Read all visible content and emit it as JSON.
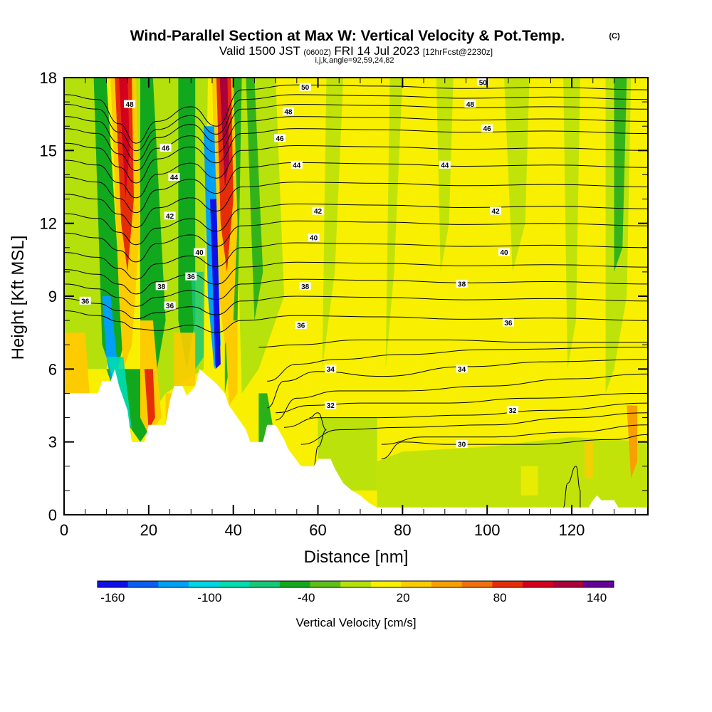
{
  "chart_data": {
    "type": "heatmap",
    "title": "Wind-Parallel Section at Max W: Vertical Velocity & Pot.Temp.",
    "title_mark": "(C)",
    "subtitle": {
      "valid": "Valid 1500 JST",
      "utc": "(0600Z)",
      "date": "FRI 14 Jul 2023",
      "forecast": "[12hrFcst@2230z]"
    },
    "index_line": "i,j,k,angle=92,59,24,82",
    "xlabel": "Distance [nm]",
    "ylabel": "Height [Kft MSL]",
    "xlim": [
      0,
      138
    ],
    "ylim": [
      0,
      18
    ],
    "x_ticks": [
      "0",
      "20",
      "40",
      "60",
      "80",
      "100",
      "120"
    ],
    "x_tick_values": [
      0,
      20,
      40,
      60,
      80,
      100,
      120
    ],
    "y_ticks": [
      "0",
      "3",
      "6",
      "9",
      "12",
      "15",
      "18"
    ],
    "y_tick_values": [
      0,
      3,
      6,
      9,
      12,
      15,
      18
    ],
    "colorbar": {
      "label": "Vertical Velocity [cm/s]",
      "tick_labels": [
        "-160",
        "-100",
        "-40",
        "20",
        "80",
        "140"
      ],
      "bins": [
        -160,
        -140,
        -120,
        -100,
        -80,
        -60,
        -40,
        -20,
        0,
        20,
        40,
        60,
        80,
        100,
        120,
        140,
        160
      ],
      "colors": [
        "#1010e6",
        "#0a5ef0",
        "#00a0f5",
        "#00d5e6",
        "#00dcb0",
        "#18c878",
        "#12a81e",
        "#5cc018",
        "#b4e00c",
        "#f8f000",
        "#fccc00",
        "#f8a000",
        "#f07010",
        "#e62d0a",
        "#d2001e",
        "#aa003c",
        "#640096"
      ]
    },
    "wv_features": [
      {
        "x": 13,
        "z": 18,
        "w": 130,
        "note": "updraft plume"
      },
      {
        "x": 10,
        "z": 6,
        "w": -110,
        "note": "downdraft"
      },
      {
        "x": 37.5,
        "z": 17,
        "w": 155,
        "note": "updraft plume"
      },
      {
        "x": 36,
        "z": 7,
        "w": -160,
        "note": "downdraft core"
      },
      {
        "x": 135,
        "z": 3,
        "w": 60,
        "note": "weak updraft"
      }
    ],
    "theta_contour_labels": [
      {
        "x": 30,
        "z": 9.8,
        "label": "36"
      },
      {
        "x": 5,
        "z": 8.8,
        "label": "36"
      },
      {
        "x": 25,
        "z": 8.6,
        "label": "36"
      },
      {
        "x": 56,
        "z": 7.8,
        "label": "36"
      },
      {
        "x": 105,
        "z": 7.9,
        "label": "36"
      },
      {
        "x": 57,
        "z": 9.4,
        "label": "38"
      },
      {
        "x": 94,
        "z": 9.5,
        "label": "38"
      },
      {
        "x": 23,
        "z": 9.4,
        "label": "38"
      },
      {
        "x": 32,
        "z": 10.8,
        "label": "40"
      },
      {
        "x": 59,
        "z": 11.4,
        "label": "40"
      },
      {
        "x": 104,
        "z": 10.8,
        "label": "40"
      },
      {
        "x": 25,
        "z": 12.3,
        "label": "42"
      },
      {
        "x": 60,
        "z": 12.5,
        "label": "42"
      },
      {
        "x": 102,
        "z": 12.5,
        "label": "42"
      },
      {
        "x": 26,
        "z": 13.9,
        "label": "44"
      },
      {
        "x": 55,
        "z": 14.4,
        "label": "44"
      },
      {
        "x": 90,
        "z": 14.4,
        "label": "44"
      },
      {
        "x": 24,
        "z": 15.1,
        "label": "46"
      },
      {
        "x": 51,
        "z": 15.5,
        "label": "46"
      },
      {
        "x": 100,
        "z": 15.9,
        "label": "46"
      },
      {
        "x": 15.5,
        "z": 16.9,
        "label": "48"
      },
      {
        "x": 53,
        "z": 16.6,
        "label": "48"
      },
      {
        "x": 96,
        "z": 16.9,
        "label": "48"
      },
      {
        "x": 57,
        "z": 17.6,
        "label": "50"
      },
      {
        "x": 99,
        "z": 17.8,
        "label": "50"
      },
      {
        "x": 63,
        "z": 6.0,
        "label": "34"
      },
      {
        "x": 94,
        "z": 6.0,
        "label": "34"
      },
      {
        "x": 63,
        "z": 4.5,
        "label": "32"
      },
      {
        "x": 106,
        "z": 4.3,
        "label": "32"
      },
      {
        "x": 94,
        "z": 2.9,
        "label": "30"
      }
    ],
    "terrain_kft": [
      [
        0,
        5.0
      ],
      [
        8,
        5.0
      ],
      [
        9,
        5.5
      ],
      [
        11,
        5.5
      ],
      [
        12,
        6.0
      ],
      [
        13,
        5.3
      ],
      [
        15,
        4.3
      ],
      [
        16,
        3.0
      ],
      [
        19,
        3.0
      ],
      [
        20,
        3.7
      ],
      [
        24,
        3.7
      ],
      [
        25,
        4.7
      ],
      [
        26,
        5.3
      ],
      [
        28,
        5.3
      ],
      [
        29,
        4.9
      ],
      [
        31,
        5.3
      ],
      [
        32,
        6.0
      ],
      [
        36,
        5.4
      ],
      [
        38,
        5.0
      ],
      [
        39,
        4.5
      ],
      [
        41,
        4.0
      ],
      [
        43,
        3.5
      ],
      [
        44,
        3.0
      ],
      [
        47,
        3.0
      ],
      [
        48,
        3.7
      ],
      [
        50,
        3.7
      ],
      [
        52,
        3.1
      ],
      [
        53,
        2.7
      ],
      [
        56,
        2.0
      ],
      [
        59,
        2.0
      ],
      [
        60,
        2.3
      ],
      [
        63,
        2.3
      ],
      [
        64,
        1.9
      ],
      [
        66,
        1.3
      ],
      [
        68,
        1.0
      ],
      [
        70,
        0.8
      ],
      [
        72,
        0.5
      ],
      [
        74,
        0.3
      ],
      [
        124,
        0.3
      ],
      [
        125,
        0.6
      ],
      [
        126,
        0.8
      ],
      [
        127,
        0.6
      ],
      [
        130,
        0.6
      ],
      [
        131,
        0.3
      ],
      [
        138,
        0.3
      ]
    ]
  }
}
